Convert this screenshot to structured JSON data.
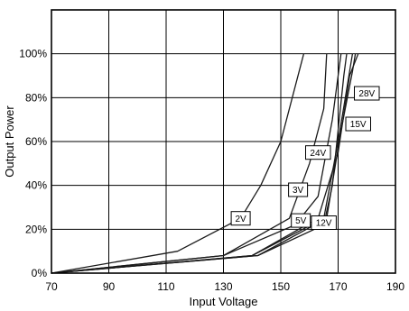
{
  "chart_data": {
    "type": "line",
    "title": "",
    "xlabel": "Input Voltage",
    "ylabel": "Output Power",
    "xlim": [
      70,
      190
    ],
    "ylim": [
      0,
      120
    ],
    "x_ticks": [
      "70",
      "90",
      "110",
      "130",
      "150",
      "170",
      "190"
    ],
    "y_ticks": [
      "0%",
      "20%",
      "40%",
      "60%",
      "80%",
      "100%"
    ],
    "grid": true,
    "series": [
      {
        "name": "2V",
        "points": [
          [
            70,
            0
          ],
          [
            114,
            10
          ],
          [
            136,
            25
          ],
          [
            143,
            40
          ],
          [
            150,
            60
          ],
          [
            158,
            100
          ]
        ],
        "label_at": [
          136,
          25
        ]
      },
      {
        "name": "3V",
        "points": [
          [
            70,
            0
          ],
          [
            130,
            8
          ],
          [
            153,
            25
          ],
          [
            160,
            50
          ],
          [
            165,
            75
          ],
          [
            166,
            100
          ]
        ],
        "label_at": [
          156,
          38
        ]
      },
      {
        "name": "5V",
        "points": [
          [
            70,
            0
          ],
          [
            130,
            8
          ],
          [
            155,
            22
          ],
          [
            163,
            35
          ],
          [
            168,
            70
          ],
          [
            171,
            100
          ]
        ],
        "label_at": [
          157,
          24
        ]
      },
      {
        "name": "12V",
        "points": [
          [
            70,
            0
          ],
          [
            140,
            8
          ],
          [
            165,
            25
          ],
          [
            170,
            60
          ],
          [
            175,
            100
          ]
        ],
        "label_at": [
          165,
          23
        ]
      },
      {
        "name": "15V",
        "points": [
          [
            70,
            0
          ],
          [
            140,
            8
          ],
          [
            163,
            25
          ],
          [
            170,
            55
          ],
          [
            174,
            90
          ],
          [
            177,
            100
          ]
        ],
        "label_at": [
          177,
          68
        ]
      },
      {
        "name": "24V",
        "points": [
          [
            70,
            0
          ],
          [
            142,
            8
          ],
          [
            165,
            22
          ],
          [
            168,
            40
          ],
          [
            172,
            90
          ],
          [
            173,
            100
          ]
        ],
        "label_at": [
          163,
          55
        ]
      },
      {
        "name": "28V",
        "points": [
          [
            70,
            0
          ],
          [
            142,
            8
          ],
          [
            166,
            25
          ],
          [
            171,
            65
          ],
          [
            175,
            92
          ],
          [
            176,
            100
          ]
        ],
        "label_at": [
          180,
          82
        ]
      }
    ]
  }
}
